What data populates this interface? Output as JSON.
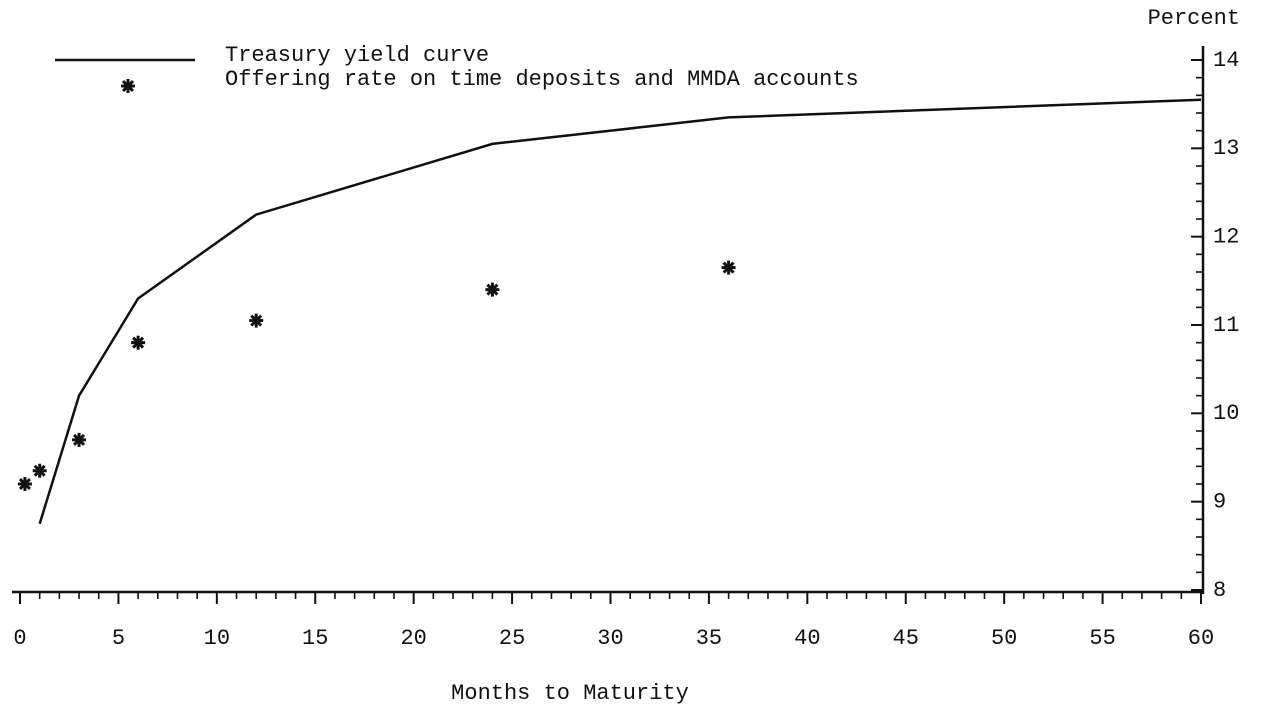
{
  "chart_data": {
    "type": "line",
    "x_label": "Months to Maturity",
    "y_label": "Percent",
    "series": [
      {
        "name": "Treasury yield curve",
        "style": "line",
        "color": "#111111",
        "x": [
          1,
          3,
          6,
          12,
          24,
          36,
          60
        ],
        "values": [
          8.75,
          10.2,
          11.3,
          12.25,
          13.05,
          13.35,
          13.55
        ]
      },
      {
        "name": "Offering rate on time deposits and MMDA accounts",
        "style": "marker",
        "color": "#111111",
        "x": [
          0.25,
          1,
          3,
          6,
          12,
          24,
          36
        ],
        "values": [
          9.2,
          9.35,
          9.7,
          10.8,
          11.05,
          11.4,
          11.65
        ]
      }
    ],
    "xlim": [
      0,
      60
    ],
    "xticks": [
      0,
      5,
      10,
      15,
      20,
      25,
      30,
      35,
      40,
      45,
      50,
      55,
      60
    ],
    "ylim": [
      8,
      14
    ],
    "yticks": [
      8,
      9,
      10,
      11,
      12,
      13,
      14
    ],
    "y_axis_side": "right"
  }
}
